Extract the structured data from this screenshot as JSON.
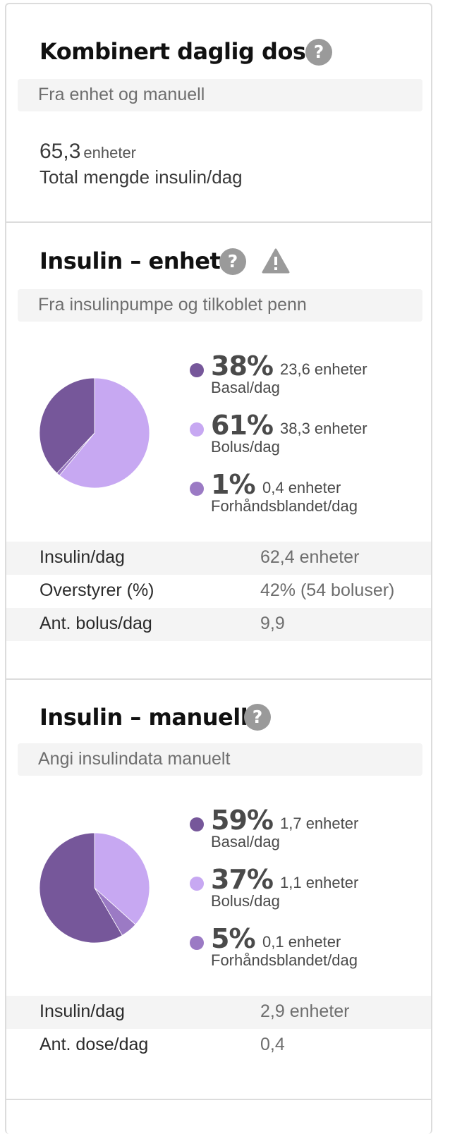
{
  "combined": {
    "title": "Kombinert daglig dose",
    "subtitle": "Fra enhet og manuell",
    "total_value": "65,3",
    "total_unit": "enheter",
    "total_label": "Total mengde insulin/dag"
  },
  "device": {
    "title": "Insulin – enhet",
    "subtitle": "Fra insulinpumpe og tilkoblet penn",
    "legend": [
      {
        "pct": "38%",
        "units": "23,6 enheter",
        "label": "Basal/dag",
        "color": "#76579a"
      },
      {
        "pct": "61%",
        "units": "38,3 enheter",
        "label": "Bolus/dag",
        "color": "#c7a8f2"
      },
      {
        "pct": "1%",
        "units": "0,4 enheter",
        "label": "Forhåndsblandet/dag",
        "color": "#9b7ac4"
      }
    ],
    "stats": [
      {
        "label": "Insulin/dag",
        "value": "62,4 enheter"
      },
      {
        "label": "Overstyrer (%)",
        "value": "42% (54 boluser)"
      },
      {
        "label": "Ant. bolus/dag",
        "value": "9,9"
      }
    ]
  },
  "manual": {
    "title": "Insulin – manuell",
    "subtitle": "Angi insulindata manuelt",
    "legend": [
      {
        "pct": "59%",
        "units": "1,7 enheter",
        "label": "Basal/dag",
        "color": "#76579a"
      },
      {
        "pct": "37%",
        "units": "1,1 enheter",
        "label": "Bolus/dag",
        "color": "#c7a8f2"
      },
      {
        "pct": "5%",
        "units": "0,1 enheter",
        "label": "Forhåndsblandet/dag",
        "color": "#9b7ac4"
      }
    ],
    "stats": [
      {
        "label": "Insulin/dag",
        "value": "2,9 enheter"
      },
      {
        "label": "Ant. dose/dag",
        "value": "0,4"
      }
    ]
  },
  "chart_data": [
    {
      "type": "pie",
      "categories": [
        "Basal/dag",
        "Bolus/dag",
        "Forhåndsblandet/dag"
      ],
      "values": [
        38,
        61,
        1
      ],
      "colors": [
        "#76579a",
        "#c7a8f2",
        "#9b7ac4"
      ]
    },
    {
      "type": "pie",
      "categories": [
        "Basal/dag",
        "Bolus/dag",
        "Forhåndsblandet/dag"
      ],
      "values": [
        59,
        37,
        5
      ],
      "colors": [
        "#76579a",
        "#c7a8f2",
        "#9b7ac4"
      ]
    }
  ]
}
